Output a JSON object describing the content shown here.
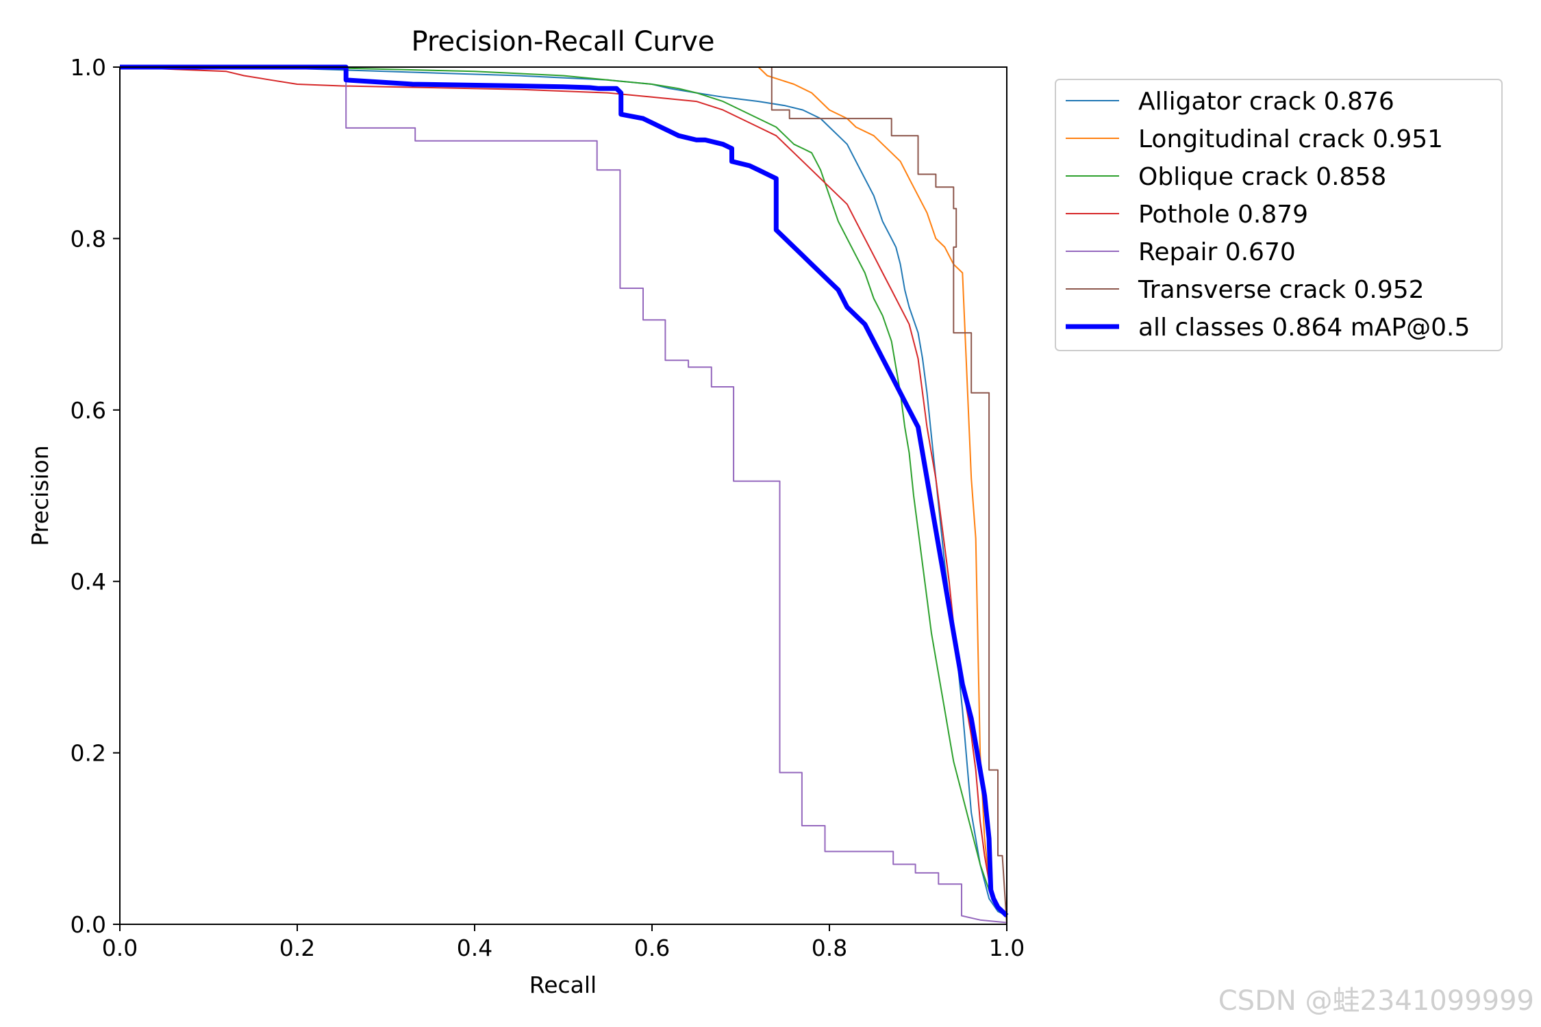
{
  "chart_data": {
    "type": "line",
    "title": "Precision-Recall Curve",
    "xlabel": "Recall",
    "ylabel": "Precision",
    "xlim": [
      0,
      1
    ],
    "ylim": [
      0,
      1
    ],
    "xticks": [
      "0.0",
      "0.2",
      "0.4",
      "0.6",
      "0.8",
      "1.0"
    ],
    "yticks": [
      "0.0",
      "0.2",
      "0.4",
      "0.6",
      "0.8",
      "1.0"
    ],
    "grid": false,
    "legend_position": "outside-right-top",
    "series": [
      {
        "name": "Alligator crack 0.876",
        "color": "#1f77b4",
        "width": 2,
        "x": [
          0,
          0.15,
          0.3,
          0.45,
          0.55,
          0.6,
          0.62,
          0.65,
          0.68,
          0.72,
          0.75,
          0.77,
          0.79,
          0.8,
          0.81,
          0.82,
          0.83,
          0.84,
          0.85,
          0.86,
          0.87,
          0.875,
          0.88,
          0.885,
          0.89,
          0.9,
          0.905,
          0.91,
          0.915,
          0.92,
          0.925,
          0.93,
          0.935,
          0.94,
          0.945,
          0.95,
          0.955,
          0.96,
          0.97,
          0.98,
          0.99,
          1.0
        ],
        "y": [
          1.0,
          1.0,
          0.995,
          0.99,
          0.985,
          0.98,
          0.975,
          0.97,
          0.965,
          0.96,
          0.955,
          0.95,
          0.94,
          0.93,
          0.92,
          0.91,
          0.89,
          0.87,
          0.85,
          0.82,
          0.8,
          0.79,
          0.77,
          0.74,
          0.72,
          0.69,
          0.66,
          0.62,
          0.57,
          0.52,
          0.47,
          0.42,
          0.38,
          0.34,
          0.3,
          0.25,
          0.19,
          0.13,
          0.07,
          0.03,
          0.015,
          0.01
        ]
      },
      {
        "name": "Longitudinal crack 0.951",
        "color": "#ff7f0e",
        "width": 2,
        "x": [
          0,
          0.6,
          0.61,
          0.61,
          0.72,
          0.73,
          0.76,
          0.78,
          0.79,
          0.8,
          0.82,
          0.83,
          0.85,
          0.86,
          0.87,
          0.88,
          0.89,
          0.9,
          0.91,
          0.92,
          0.93,
          0.94,
          0.95,
          0.96,
          0.965,
          0.97,
          0.975,
          0.98,
          0.99,
          1.0
        ],
        "y": [
          1.0,
          1.0,
          1.0,
          1.0,
          1.0,
          0.99,
          0.98,
          0.97,
          0.96,
          0.95,
          0.94,
          0.93,
          0.92,
          0.91,
          0.9,
          0.89,
          0.87,
          0.85,
          0.83,
          0.8,
          0.79,
          0.77,
          0.76,
          0.52,
          0.45,
          0.2,
          0.1,
          0.05,
          0.02,
          0.01
        ]
      },
      {
        "name": "Oblique crack 0.858",
        "color": "#2ca02c",
        "width": 2,
        "x": [
          0,
          0.2,
          0.4,
          0.5,
          0.55,
          0.6,
          0.63,
          0.65,
          0.68,
          0.7,
          0.72,
          0.74,
          0.75,
          0.76,
          0.77,
          0.78,
          0.79,
          0.8,
          0.81,
          0.82,
          0.83,
          0.84,
          0.85,
          0.86,
          0.87,
          0.875,
          0.88,
          0.885,
          0.89,
          0.895,
          0.9,
          0.905,
          0.91,
          0.915,
          0.92,
          0.925,
          0.93,
          0.935,
          0.94,
          0.95,
          0.96,
          0.97,
          0.98,
          0.99,
          1.0
        ],
        "y": [
          1.0,
          1.0,
          0.995,
          0.99,
          0.985,
          0.98,
          0.975,
          0.97,
          0.96,
          0.95,
          0.94,
          0.93,
          0.92,
          0.91,
          0.905,
          0.9,
          0.88,
          0.85,
          0.82,
          0.8,
          0.78,
          0.76,
          0.73,
          0.71,
          0.68,
          0.65,
          0.62,
          0.58,
          0.55,
          0.5,
          0.46,
          0.42,
          0.38,
          0.34,
          0.31,
          0.28,
          0.25,
          0.22,
          0.19,
          0.15,
          0.11,
          0.07,
          0.04,
          0.02,
          0.01
        ]
      },
      {
        "name": "Pothole 0.879",
        "color": "#d62728",
        "width": 2,
        "x": [
          0,
          0.12,
          0.14,
          0.17,
          0.2,
          0.25,
          0.35,
          0.45,
          0.5,
          0.55,
          0.6,
          0.65,
          0.68,
          0.7,
          0.72,
          0.74,
          0.76,
          0.78,
          0.8,
          0.82,
          0.83,
          0.84,
          0.85,
          0.86,
          0.87,
          0.88,
          0.89,
          0.9,
          0.905,
          0.91,
          0.915,
          0.92,
          0.925,
          0.93,
          0.935,
          0.94,
          0.95,
          0.96,
          0.965,
          0.97,
          0.975,
          0.98,
          0.99,
          1.0
        ],
        "y": [
          1.0,
          0.995,
          0.99,
          0.985,
          0.98,
          0.978,
          0.976,
          0.974,
          0.972,
          0.97,
          0.965,
          0.96,
          0.95,
          0.94,
          0.93,
          0.92,
          0.9,
          0.88,
          0.86,
          0.84,
          0.82,
          0.8,
          0.78,
          0.76,
          0.74,
          0.72,
          0.7,
          0.66,
          0.62,
          0.58,
          0.55,
          0.52,
          0.48,
          0.44,
          0.4,
          0.35,
          0.28,
          0.22,
          0.18,
          0.12,
          0.08,
          0.05,
          0.02,
          0.01
        ]
      },
      {
        "name": "Repair 0.670",
        "color": "#9467bd",
        "width": 2,
        "x": [
          0,
          0.255,
          0.255,
          0.333,
          0.333,
          0.538,
          0.538,
          0.564,
          0.564,
          0.59,
          0.59,
          0.615,
          0.615,
          0.641,
          0.641,
          0.667,
          0.667,
          0.692,
          0.692,
          0.744,
          0.744,
          0.769,
          0.769,
          0.795,
          0.795,
          0.872,
          0.872,
          0.897,
          0.897,
          0.923,
          0.923,
          0.949,
          0.949,
          0.97,
          1.0
        ],
        "y": [
          1.0,
          1.0,
          0.929,
          0.929,
          0.914,
          0.914,
          0.88,
          0.88,
          0.742,
          0.742,
          0.705,
          0.705,
          0.658,
          0.658,
          0.65,
          0.65,
          0.627,
          0.627,
          0.517,
          0.517,
          0.177,
          0.177,
          0.115,
          0.115,
          0.085,
          0.085,
          0.07,
          0.07,
          0.06,
          0.06,
          0.047,
          0.047,
          0.01,
          0.005,
          0.002
        ]
      },
      {
        "name": "Transverse crack 0.952",
        "color": "#8c564b",
        "width": 2,
        "x": [
          0,
          0.735,
          0.735,
          0.755,
          0.755,
          0.87,
          0.87,
          0.9,
          0.9,
          0.92,
          0.92,
          0.94,
          0.94,
          0.943,
          0.943,
          0.94,
          0.94,
          0.96,
          0.96,
          0.98,
          0.98,
          0.99,
          0.99,
          0.995,
          1.0
        ],
        "y": [
          1.0,
          1.0,
          0.95,
          0.95,
          0.94,
          0.94,
          0.92,
          0.92,
          0.875,
          0.875,
          0.86,
          0.86,
          0.835,
          0.835,
          0.79,
          0.79,
          0.69,
          0.69,
          0.62,
          0.62,
          0.18,
          0.18,
          0.08,
          0.08,
          0.0
        ]
      },
      {
        "name": "all classes 0.864 mAP@0.5",
        "color": "#0000ff",
        "width": 7,
        "x": [
          0,
          0.255,
          0.255,
          0.3,
          0.33,
          0.45,
          0.5,
          0.53,
          0.54,
          0.56,
          0.565,
          0.565,
          0.59,
          0.6,
          0.61,
          0.62,
          0.63,
          0.65,
          0.66,
          0.68,
          0.69,
          0.69,
          0.71,
          0.72,
          0.73,
          0.74,
          0.74,
          0.745,
          0.75,
          0.76,
          0.77,
          0.78,
          0.79,
          0.8,
          0.81,
          0.82,
          0.83,
          0.84,
          0.85,
          0.86,
          0.87,
          0.88,
          0.89,
          0.9,
          0.905,
          0.91,
          0.915,
          0.92,
          0.925,
          0.93,
          0.935,
          0.94,
          0.945,
          0.95,
          0.955,
          0.96,
          0.965,
          0.97,
          0.975,
          0.98,
          0.982,
          0.985,
          0.99,
          0.995,
          1.0
        ],
        "y": [
          1.0,
          1.0,
          0.985,
          0.982,
          0.98,
          0.978,
          0.977,
          0.976,
          0.975,
          0.975,
          0.97,
          0.945,
          0.94,
          0.935,
          0.93,
          0.925,
          0.92,
          0.915,
          0.915,
          0.91,
          0.905,
          0.89,
          0.885,
          0.88,
          0.875,
          0.87,
          0.81,
          0.805,
          0.8,
          0.79,
          0.78,
          0.77,
          0.76,
          0.75,
          0.74,
          0.72,
          0.71,
          0.7,
          0.68,
          0.66,
          0.64,
          0.62,
          0.6,
          0.58,
          0.55,
          0.52,
          0.49,
          0.46,
          0.43,
          0.4,
          0.37,
          0.34,
          0.31,
          0.28,
          0.26,
          0.24,
          0.21,
          0.18,
          0.15,
          0.1,
          0.04,
          0.03,
          0.02,
          0.015,
          0.01
        ]
      }
    ]
  },
  "watermark": "CSDN @蛙2341099999"
}
